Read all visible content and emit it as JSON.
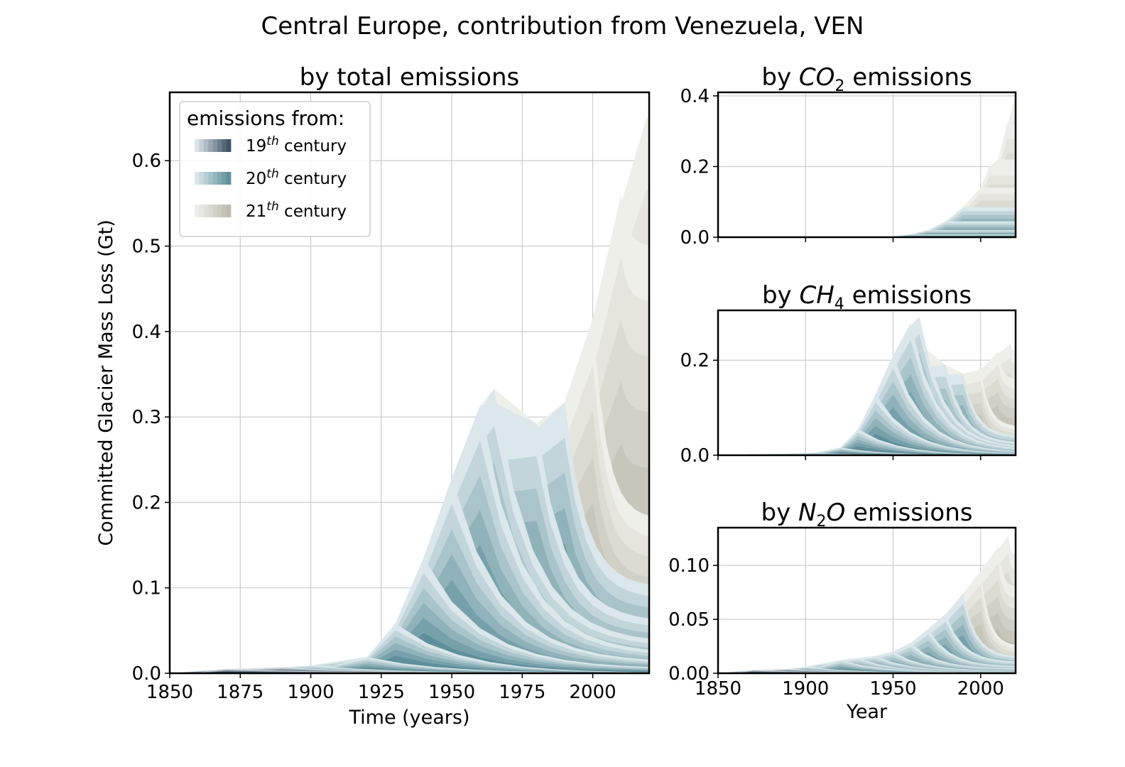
{
  "suptitle": "Central Europe, contribution from Venezuela, VEN",
  "legend": {
    "title": "emissions from:",
    "entries": [
      {
        "label_num": "19",
        "label_sup": "th",
        "label_rest": " century",
        "dark": "#3f5567",
        "light": "#dde3e8"
      },
      {
        "label_num": "20",
        "label_sup": "th",
        "label_rest": " century",
        "dark": "#5e8f9a",
        "light": "#dbe7ea"
      },
      {
        "label_num": "21",
        "label_sup": "th",
        "label_rest": " century",
        "dark": "#bcbcaf",
        "light": "#efefea"
      }
    ]
  },
  "colors": {
    "c19_dark": "#3f5567",
    "c19_light": "#dde3e8",
    "c20_dark": "#5e8f9a",
    "c20_light": "#dbe7ea",
    "c21_dark": "#bcbcaf",
    "c21_light": "#efefea",
    "grid": "#cccccc"
  },
  "chart_data": [
    {
      "id": "total",
      "type": "area",
      "title_pre": "by total emissions",
      "title_sub": "",
      "title_post": "",
      "xlabel": "Time (years)",
      "ylabel": "Committed Glacier Mass Loss (Gt)",
      "xlim": [
        1850,
        2020
      ],
      "ylim": [
        0,
        0.68
      ],
      "xticks": [
        1850,
        1875,
        1900,
        1925,
        1950,
        1975,
        2000
      ],
      "yticks": [
        0.0,
        0.1,
        0.2,
        0.3,
        0.4,
        0.5,
        0.6
      ],
      "ytick_labels": [
        "0.0",
        "0.1",
        "0.2",
        "0.3",
        "0.4",
        "0.5",
        "0.6"
      ],
      "show_xtick_labels": true,
      "ridge_years": [
        1870,
        1890,
        1900,
        1920,
        1930,
        1940,
        1950,
        1960,
        1965,
        1980,
        1990,
        2000,
        2010,
        2019
      ],
      "ridge_peaks": [
        0.005,
        0.007,
        0.009,
        0.019,
        0.058,
        0.135,
        0.228,
        0.313,
        0.333,
        0.292,
        0.317,
        0.415,
        0.56,
        0.65
      ],
      "tail_end": [
        0.0,
        0.0,
        0.0,
        0.0,
        0.0,
        0.005,
        0.012,
        0.022,
        0.035,
        0.06,
        0.1,
        0.18,
        0.5,
        0.65
      ],
      "series": [
        {
          "name": "19th century",
          "x": [
            1850,
            1875,
            1900,
            1920,
            1950,
            2000,
            2020
          ],
          "y": [
            0.0,
            0.005,
            0.009,
            0.008,
            0.004,
            0.001,
            0.0
          ]
        },
        {
          "name": "20th century",
          "x": [
            1900,
            1925,
            1930,
            1940,
            1950,
            1960,
            1965,
            1980,
            1990,
            2000,
            2020
          ],
          "y": [
            0.0,
            0.015,
            0.058,
            0.135,
            0.228,
            0.313,
            0.333,
            0.292,
            0.317,
            0.415,
            0.305
          ]
        },
        {
          "name": "21st century",
          "x": [
            2000,
            2010,
            2019,
            2020
          ],
          "y": [
            0.0,
            0.14,
            0.36,
            0.36
          ]
        }
      ]
    },
    {
      "id": "co2",
      "type": "area",
      "title_pre": "by ",
      "title_sub": "2",
      "title_post": " emissions",
      "title_it": "CO",
      "xlabel": "",
      "ylabel": "",
      "xlim": [
        1850,
        2020
      ],
      "ylim": [
        0,
        0.41
      ],
      "xticks": [
        1850,
        1900,
        1950,
        2000
      ],
      "yticks": [
        0.0,
        0.2,
        0.4
      ],
      "ytick_labels": [
        "0.0",
        "0.2",
        "0.4"
      ],
      "show_xtick_labels": false,
      "ridge_years": [
        1950,
        1960,
        1970,
        1980,
        1990,
        2000,
        2005,
        2010,
        2015,
        2020
      ],
      "ridge_peaks": [
        0.002,
        0.008,
        0.02,
        0.045,
        0.085,
        0.14,
        0.2,
        0.22,
        0.32,
        0.4
      ],
      "tail_end": [
        0.002,
        0.008,
        0.02,
        0.045,
        0.085,
        0.14,
        0.2,
        0.22,
        0.32,
        0.4
      ],
      "plateau": true
    },
    {
      "id": "ch4",
      "type": "area",
      "title_pre": "by ",
      "title_sub": "4",
      "title_post": " emissions",
      "title_it": "CH",
      "xlabel": "",
      "ylabel": "",
      "xlim": [
        1850,
        2020
      ],
      "ylim": [
        0,
        0.305
      ],
      "xticks": [
        1850,
        1900,
        1950,
        2000
      ],
      "yticks": [
        0.0,
        0.2
      ],
      "ytick_labels": [
        "0.0",
        "0.2"
      ],
      "show_xtick_labels": false,
      "ridge_years": [
        1870,
        1890,
        1905,
        1920,
        1930,
        1940,
        1950,
        1960,
        1965,
        1980,
        1990,
        2000,
        2010,
        2017
      ],
      "ridge_peaks": [
        0.002,
        0.003,
        0.005,
        0.016,
        0.055,
        0.128,
        0.21,
        0.278,
        0.292,
        0.19,
        0.172,
        0.18,
        0.218,
        0.235
      ],
      "tail_end": [
        0,
        0,
        0,
        0,
        0,
        0.002,
        0.005,
        0.01,
        0.015,
        0.025,
        0.04,
        0.06,
        0.16,
        0.22
      ]
    },
    {
      "id": "n2o",
      "type": "area",
      "title_pre": "by ",
      "title_sub": "2",
      "title_post": " emissions",
      "title_it": "N",
      "title_it2": "O",
      "xlabel": "Year",
      "ylabel": "",
      "xlim": [
        1850,
        2020
      ],
      "ylim": [
        0,
        0.135
      ],
      "xticks": [
        1850,
        1900,
        1950,
        2000
      ],
      "yticks": [
        0.0,
        0.05,
        0.1
      ],
      "ytick_labels": [
        "0.00",
        "0.05",
        "0.10"
      ],
      "show_xtick_labels": true,
      "ridge_years": [
        1870,
        1890,
        1900,
        1920,
        1930,
        1940,
        1950,
        1960,
        1970,
        1980,
        1990,
        2000,
        2010,
        2016
      ],
      "ridge_peaks": [
        0.003,
        0.004,
        0.006,
        0.012,
        0.014,
        0.016,
        0.02,
        0.028,
        0.041,
        0.055,
        0.074,
        0.095,
        0.117,
        0.128
      ],
      "tail_end": [
        0,
        0,
        0,
        0,
        0,
        0.001,
        0.002,
        0.004,
        0.006,
        0.01,
        0.015,
        0.025,
        0.08,
        0.11
      ]
    }
  ]
}
